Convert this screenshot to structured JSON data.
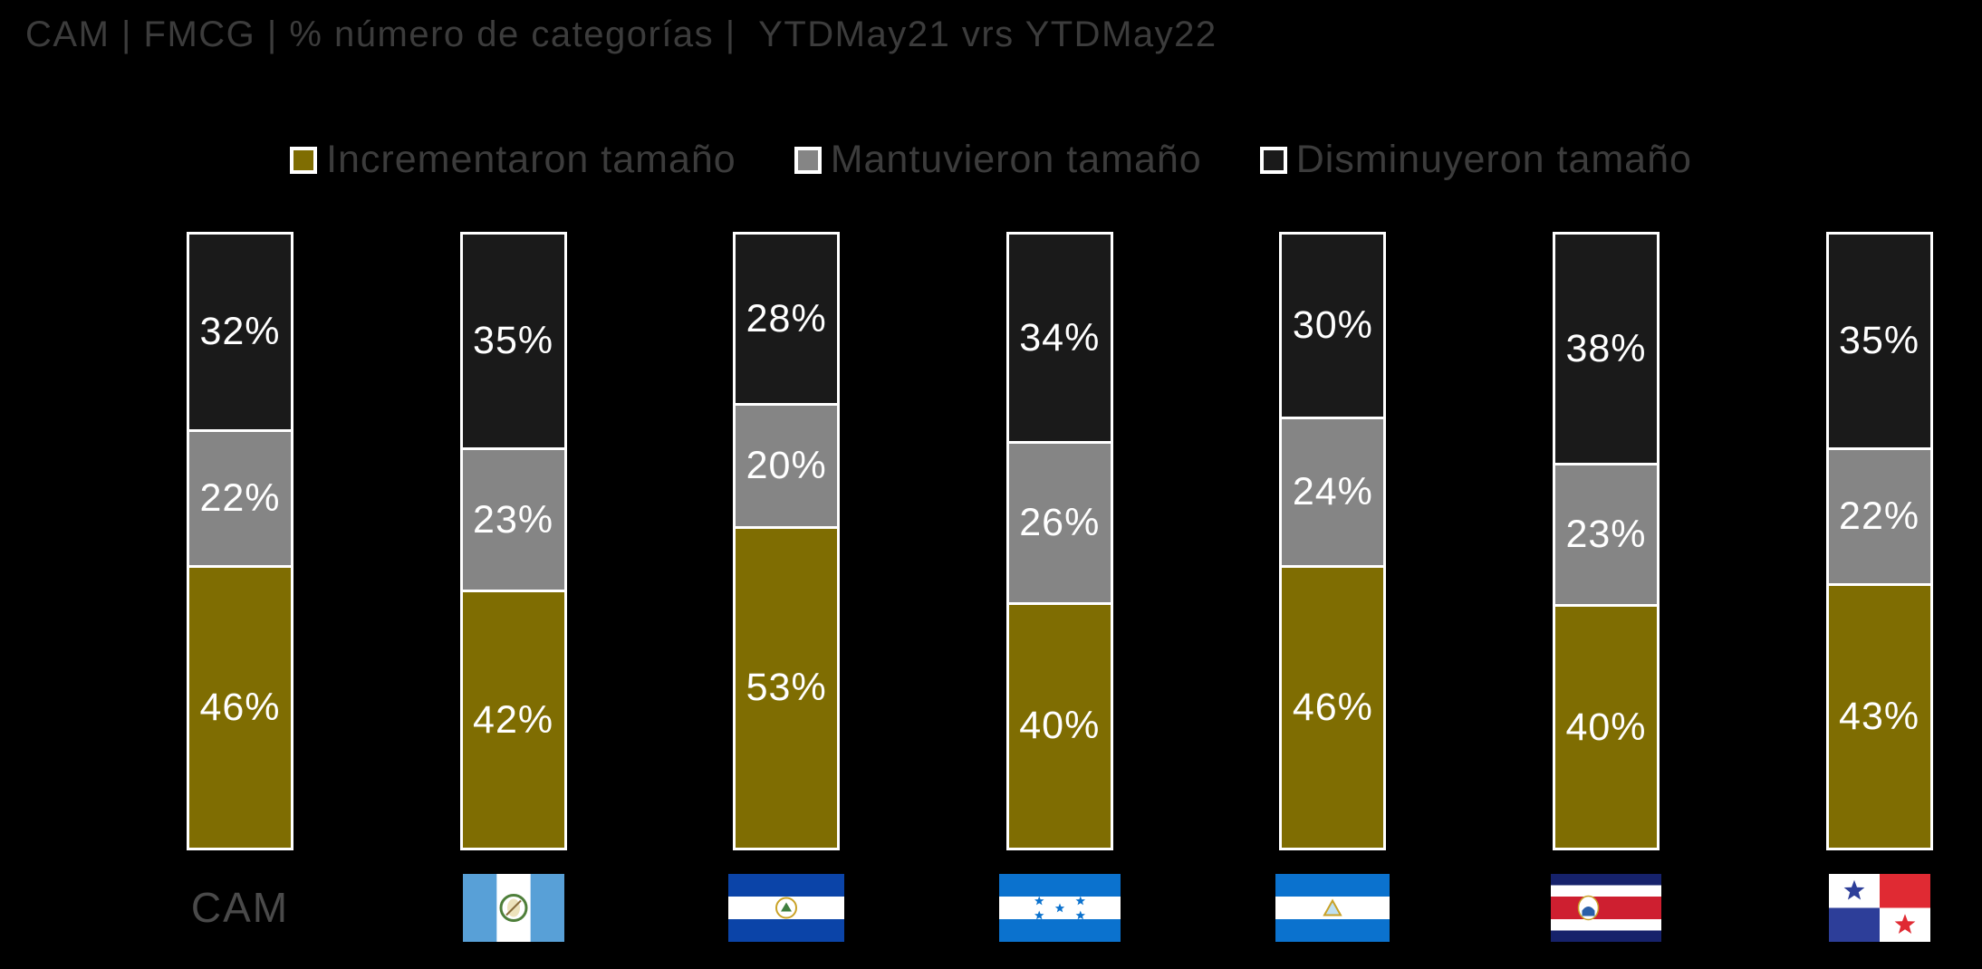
{
  "title": "CAM | FMCG | % número de categorías |  YTDMay21 vrs YTDMay22",
  "colors": {
    "background": "#000000",
    "title_text": "#3c3c3c",
    "legend_text": "#3c3c3c",
    "bar_border": "#ffffff",
    "value_label_text": "#ffffff",
    "cam_axis_label": "#4a4a4a",
    "incrementaron": "#7f6d02",
    "mantuvieron": "#858585",
    "disminuyeron": "#1a1a1a"
  },
  "legend": {
    "items": [
      {
        "label": "Incrementaron tamaño",
        "color": "#7f6d02"
      },
      {
        "label": "Mantuvieron tamaño",
        "color": "#858585"
      },
      {
        "label": "Disminuyeron tamaño",
        "color": "#1a1a1a"
      }
    ]
  },
  "chart_data": {
    "type": "bar",
    "stacked": true,
    "normalized_to_100": true,
    "title": "CAM | FMCG | % número de categorías |  YTDMay21 vrs YTDMay22",
    "legend_position": "top-center",
    "value_suffix": "%",
    "categories": [
      "CAM",
      "Guatemala",
      "El Salvador",
      "Honduras",
      "Nicaragua",
      "Costa Rica",
      "Panamá"
    ],
    "series": [
      {
        "name": "Incrementaron tamaño",
        "color": "#7f6d02",
        "values": [
          46,
          42,
          53,
          40,
          46,
          40,
          43
        ]
      },
      {
        "name": "Mantuvieron tamaño",
        "color": "#858585",
        "values": [
          22,
          23,
          20,
          26,
          24,
          23,
          22
        ]
      },
      {
        "name": "Disminuyeron tamaño",
        "color": "#1a1a1a",
        "values": [
          32,
          35,
          28,
          34,
          30,
          38,
          35
        ]
      }
    ],
    "stack_order_top_to_bottom": [
      "Disminuyeron tamaño",
      "Mantuvieron tamaño",
      "Incrementaron tamaño"
    ],
    "x_axis_items": [
      {
        "kind": "text",
        "label": "CAM"
      },
      {
        "kind": "flag",
        "flag": "guatemala",
        "country": "Guatemala"
      },
      {
        "kind": "flag",
        "flag": "el-salvador",
        "country": "El Salvador"
      },
      {
        "kind": "flag",
        "flag": "honduras",
        "country": "Honduras"
      },
      {
        "kind": "flag",
        "flag": "nicaragua",
        "country": "Nicaragua"
      },
      {
        "kind": "flag",
        "flag": "costa-rica",
        "country": "Costa Rica"
      },
      {
        "kind": "flag",
        "flag": "panama",
        "country": "Panamá"
      }
    ]
  }
}
